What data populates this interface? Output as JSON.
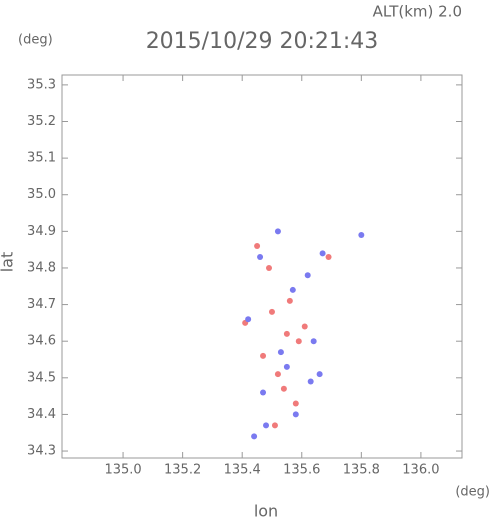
{
  "chart_data": {
    "type": "scatter",
    "title": "2015/10/29 20:21:43",
    "subtitle": "ALT(km) 2.0",
    "y_unit": "(deg)",
    "x_unit": "(deg)",
    "x_label": "lon",
    "y_label": "lat",
    "xlim": [
      134.795,
      136.138
    ],
    "ylim": [
      34.281,
      35.327
    ],
    "xticks": [
      {
        "value": 135,
        "label": "135.0"
      },
      135.2,
      135.4,
      135.6,
      135.8,
      {
        "value": 136,
        "label": "136.0"
      }
    ],
    "yticks": [
      35.3,
      35.2,
      35.1,
      {
        "value": 35,
        "label": "35.0"
      },
      34.9,
      34.8,
      34.7,
      34.6,
      34.5,
      34.4,
      34.3
    ],
    "series": [
      {
        "color": "#f07a7a",
        "x": [
          135.45,
          135.56,
          135.59,
          135.47,
          135.54,
          135.58,
          135.41,
          135.51,
          135.61,
          135.49,
          135.69,
          135.52,
          135.55,
          135.5
        ],
        "values": [
          34.86,
          34.71,
          34.6,
          34.56,
          34.47,
          34.43,
          34.65,
          34.37,
          34.64,
          34.8,
          34.83,
          34.51,
          34.62,
          34.68
        ]
      },
      {
        "color": "#7a7af0",
        "x": [
          135.52,
          135.8,
          135.42,
          135.53,
          135.64,
          135.47,
          135.63,
          135.66,
          135.48,
          135.44,
          135.57,
          135.62,
          135.46,
          135.58,
          135.55,
          135.67
        ],
        "values": [
          34.9,
          34.89,
          34.66,
          34.57,
          34.6,
          34.46,
          34.49,
          34.51,
          34.37,
          34.34,
          34.74,
          34.78,
          34.83,
          34.4,
          34.53,
          34.84
        ]
      }
    ]
  }
}
